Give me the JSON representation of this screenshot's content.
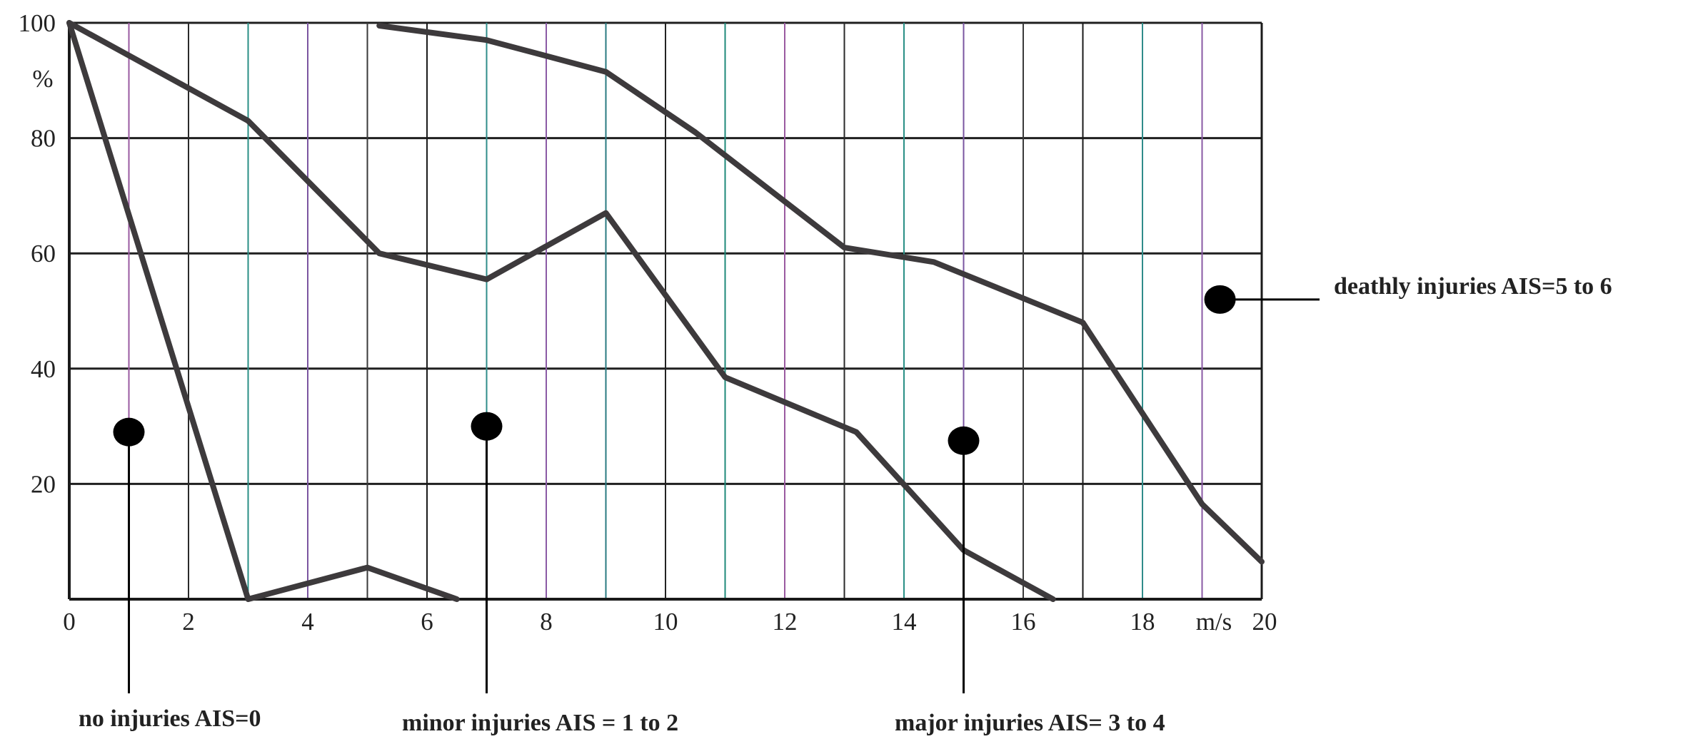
{
  "chart_data": {
    "type": "line",
    "title": "",
    "xlabel": "m/s",
    "ylabel": "%",
    "xlim": [
      0,
      20
    ],
    "ylim": [
      0,
      100
    ],
    "grid": true,
    "x_ticks": [
      {
        "value": 0,
        "label": "0"
      },
      {
        "value": 2,
        "label": "2"
      },
      {
        "value": 4,
        "label": "4"
      },
      {
        "value": 6,
        "label": "6"
      },
      {
        "value": 8,
        "label": "8"
      },
      {
        "value": 10,
        "label": "10"
      },
      {
        "value": 12,
        "label": "12"
      },
      {
        "value": 14,
        "label": "14"
      },
      {
        "value": 16,
        "label": "16"
      },
      {
        "value": 18,
        "label": "18"
      },
      {
        "value": 20,
        "label": "20"
      }
    ],
    "y_ticks": [
      {
        "value": 20,
        "label": "20"
      },
      {
        "value": 40,
        "label": "40"
      },
      {
        "value": 60,
        "label": "60"
      },
      {
        "value": 80,
        "label": "80"
      },
      {
        "value": 100,
        "label": "100"
      }
    ],
    "series": [
      {
        "name": "",
        "x": [
          0,
          3,
          5,
          6.5
        ],
        "y": [
          100,
          0,
          5.5,
          0
        ]
      },
      {
        "name": "",
        "x": [
          0,
          3,
          5.2,
          7,
          9,
          11,
          13.2,
          15,
          16.5
        ],
        "y": [
          100,
          83,
          60,
          55.5,
          67,
          38.5,
          29,
          8.5,
          0
        ]
      },
      {
        "name": "",
        "x": [
          5.2,
          7,
          9,
          10.5,
          13,
          14.5,
          17,
          19,
          20
        ],
        "y": [
          99.5,
          97,
          91.5,
          81,
          61,
          58.5,
          48,
          16.5,
          6.5
        ]
      }
    ],
    "annotations": [
      {
        "label": "no injuries AIS=0",
        "dot": {
          "x": 1,
          "y": 29
        }
      },
      {
        "label": "minor injuries AIS = 1 to 2",
        "dot": {
          "x": 7,
          "y": 30
        }
      },
      {
        "label": "major injuries AIS= 3 to 4",
        "dot": {
          "x": 15,
          "y": 27.5
        }
      },
      {
        "label": "deathly injuries AIS=5 to 6",
        "dot": {
          "x": 19.3,
          "y": 52
        }
      }
    ],
    "colors": {
      "line": "#3d3a3c",
      "grid_h": "#1f1f1f",
      "grid_v": [
        "#1e8a7a",
        "#9a5aa0",
        "#2a2a2a",
        "#2a8f86",
        "#7a55a0",
        "#3a3a3a",
        "#1a1a1a",
        "#2f8c8a",
        "#8a5aa5",
        "#2a7a80",
        "#222222"
      ]
    }
  }
}
